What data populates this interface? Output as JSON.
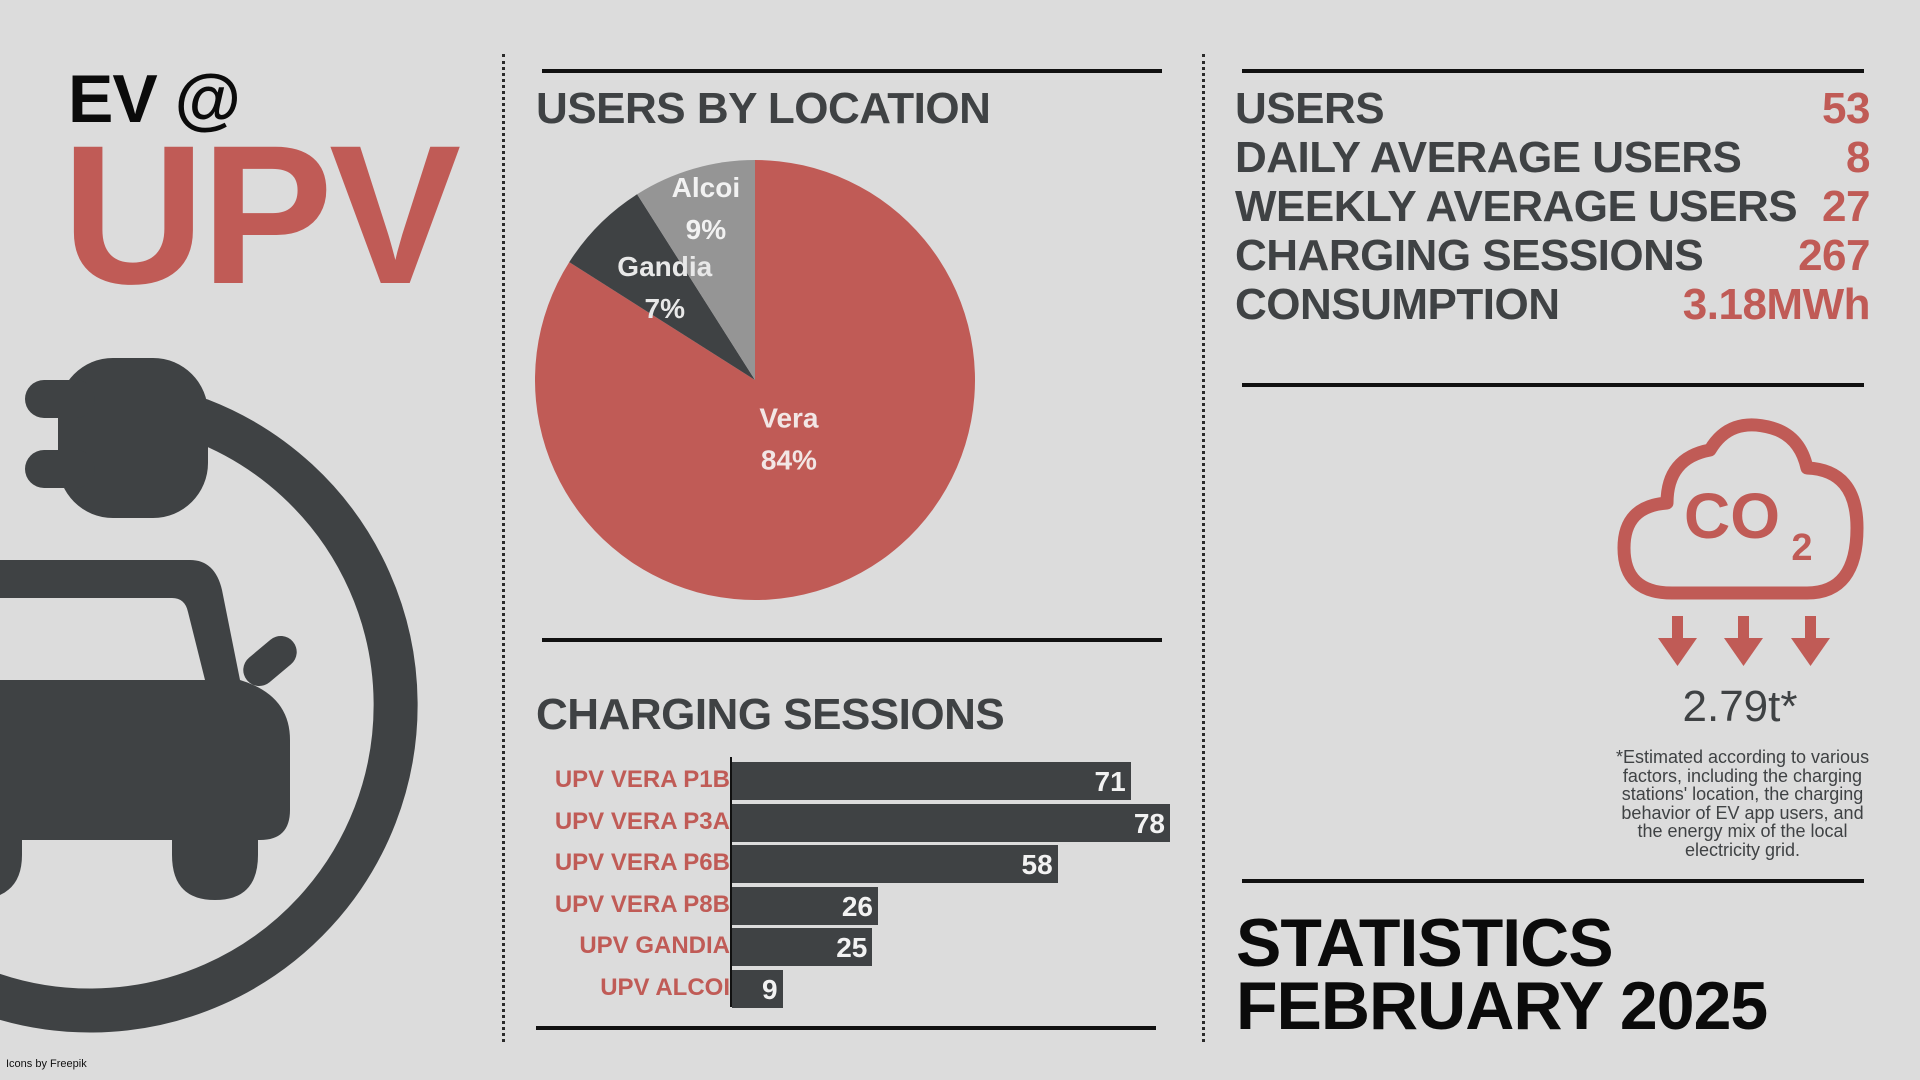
{
  "header": {
    "ev_at": "EV @",
    "brand": "UPV"
  },
  "pie": {
    "title": "USERS BY LOCATION",
    "labels": [
      {
        "name": "Vera",
        "pct": "84%"
      },
      {
        "name": "Gandia",
        "pct": "7%"
      },
      {
        "name": "Alcoi",
        "pct": "9%"
      }
    ]
  },
  "bars": {
    "title": "CHARGING SESSIONS"
  },
  "chart_data": [
    {
      "type": "pie",
      "title": "USERS BY LOCATION",
      "categories": [
        "Vera",
        "Gandia",
        "Alcoi"
      ],
      "values": [
        84,
        7,
        9
      ],
      "colors": [
        "#c05b56",
        "#3f4244",
        "#959595"
      ]
    },
    {
      "type": "bar",
      "orientation": "horizontal",
      "title": "CHARGING SESSIONS",
      "categories": [
        "UPV VERA P1B",
        "UPV VERA P3A",
        "UPV VERA P6B",
        "UPV VERA P8B",
        "UPV GANDIA",
        "UPV ALCOI"
      ],
      "values": [
        71,
        78,
        58,
        26,
        25,
        9
      ],
      "xlim": [
        0,
        78
      ],
      "grid": false,
      "bar_color": "#3f4244"
    }
  ],
  "stats": [
    {
      "label": "USERS",
      "value": "53"
    },
    {
      "label": "DAILY AVERAGE USERS",
      "value": "8"
    },
    {
      "label": "WEEKLY AVERAGE USERS",
      "value": "27"
    },
    {
      "label": "CHARGING SESSIONS",
      "value": "267"
    },
    {
      "label": "CONSUMPTION",
      "value": "3.18MWh"
    }
  ],
  "co2": {
    "icon": "co2-cloud-icon",
    "value": "2.79t*",
    "note": "*Estimated according to various factors, including the charging stations' location, the charging behavior of EV app users, and the energy mix of the local electricity grid."
  },
  "footer": {
    "line1": "STATISTICS",
    "line2": "FEBRUARY 2025",
    "credit": "Icons by Freepik"
  },
  "colors": {
    "accent": "#c05b56",
    "dark": "#3f4244",
    "grey": "#959595",
    "background": "#dcdcdc"
  }
}
